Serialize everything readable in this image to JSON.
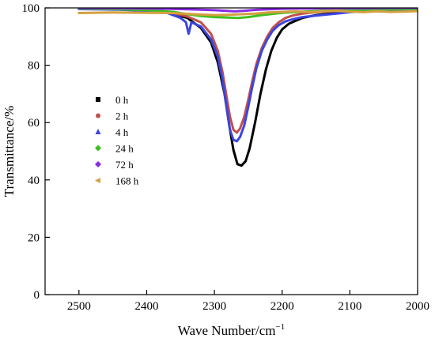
{
  "chart_data": {
    "type": "line",
    "xlabel": "Wave Number/cm",
    "xlabel_superscript": "−1",
    "ylabel": "Transmittance/%",
    "xlim": [
      2550,
      2000
    ],
    "ylim": [
      0,
      100
    ],
    "x_reversed": true,
    "x_ticks": [
      2500,
      2400,
      2300,
      2200,
      2100,
      2000
    ],
    "y_ticks": [
      0,
      20,
      40,
      60,
      80,
      100
    ],
    "grid": false,
    "legend_position": "left-center",
    "series": [
      {
        "name": "0 h",
        "color": "#000000",
        "marker": "square",
        "x": [
          2500,
          2440,
          2400,
          2370,
          2340,
          2320,
          2305,
          2295,
          2285,
          2278,
          2272,
          2266,
          2260,
          2254,
          2248,
          2240,
          2232,
          2224,
          2216,
          2208,
          2200,
          2190,
          2180,
          2170,
          2150,
          2120,
          2100,
          2070,
          2040,
          2000
        ],
        "y": [
          99.8,
          99.6,
          99.2,
          98.5,
          96.5,
          93,
          88,
          81,
          70,
          59,
          50.5,
          45.5,
          45,
          46.5,
          51,
          60,
          70,
          78.5,
          85,
          89.5,
          92.5,
          94.5,
          95.5,
          96.5,
          97.5,
          98.3,
          98.8,
          99.2,
          99.4,
          99.5
        ]
      },
      {
        "name": "2 h",
        "color": "#c0504d",
        "marker": "circle",
        "x": [
          2500,
          2440,
          2400,
          2370,
          2340,
          2320,
          2305,
          2295,
          2288,
          2282,
          2277,
          2272,
          2267,
          2262,
          2256,
          2250,
          2244,
          2238,
          2230,
          2222,
          2214,
          2205,
          2195,
          2185,
          2170,
          2150,
          2120,
          2100,
          2070,
          2040,
          2000
        ],
        "y": [
          99.8,
          99.7,
          99.4,
          98.7,
          97,
          95,
          91,
          85,
          77.5,
          69,
          62,
          57.5,
          56.5,
          58,
          62,
          68,
          74.5,
          80.5,
          86,
          90,
          93,
          95,
          96.5,
          97.3,
          98,
          98.5,
          98.9,
          99.1,
          99.3,
          99.4,
          99.5
        ]
      },
      {
        "name": "4 h",
        "color": "#3b45e0",
        "marker": "triangle",
        "x": [
          2500,
          2440,
          2400,
          2370,
          2350,
          2342,
          2338,
          2334,
          2320,
          2305,
          2295,
          2288,
          2282,
          2277,
          2272,
          2267,
          2262,
          2256,
          2250,
          2244,
          2238,
          2230,
          2222,
          2214,
          2205,
          2195,
          2185,
          2170,
          2150,
          2120,
          2100,
          2070,
          2040,
          2000
        ],
        "y": [
          99.6,
          99.4,
          99,
          98.3,
          96.5,
          95,
          91,
          95,
          93.5,
          89,
          83,
          75,
          65.5,
          57.5,
          54,
          53.5,
          55,
          59,
          65.5,
          72.5,
          79,
          85,
          89,
          92,
          94,
          95.3,
          96,
          96.8,
          97.3,
          98,
          98.5,
          99,
          99.3,
          99.5
        ]
      },
      {
        "name": "24 h",
        "color": "#40c020",
        "marker": "diamond",
        "x": [
          2500,
          2450,
          2400,
          2360,
          2340,
          2320,
          2300,
          2280,
          2265,
          2250,
          2230,
          2200,
          2160,
          2120,
          2080,
          2040,
          2000
        ],
        "y": [
          99.8,
          99.6,
          99.2,
          98.6,
          97.8,
          97.2,
          96.8,
          96.6,
          96.5,
          96.8,
          97.5,
          98.3,
          98.8,
          99.2,
          99.4,
          99.5,
          99.6
        ]
      },
      {
        "name": "72 h",
        "color": "#8a2be2",
        "marker": "diamond",
        "x": [
          2500,
          2450,
          2400,
          2350,
          2320,
          2300,
          2285,
          2270,
          2255,
          2240,
          2220,
          2200,
          2160,
          2120,
          2080,
          2040,
          2000
        ],
        "y": [
          100,
          99.9,
          99.8,
          99.6,
          99.4,
          99.2,
          99,
          98.8,
          99,
          99.3,
          99.5,
          99.7,
          99.8,
          99.9,
          99.9,
          100,
          100
        ]
      },
      {
        "name": "168 h",
        "color": "#d4a040",
        "marker": "triangle-left",
        "x": [
          2500,
          2450,
          2400,
          2360,
          2330,
          2300,
          2280,
          2260,
          2240,
          2220,
          2200,
          2180,
          2160,
          2140,
          2120,
          2100,
          2080,
          2060,
          2040,
          2020,
          2000
        ],
        "y": [
          98.2,
          98.4,
          98.3,
          98.2,
          97.8,
          97.5,
          97.6,
          97.8,
          98,
          98.4,
          98.6,
          98.8,
          98.5,
          98.8,
          99,
          98.7,
          98.5,
          98.8,
          98.6,
          98.7,
          98.9
        ]
      }
    ]
  }
}
